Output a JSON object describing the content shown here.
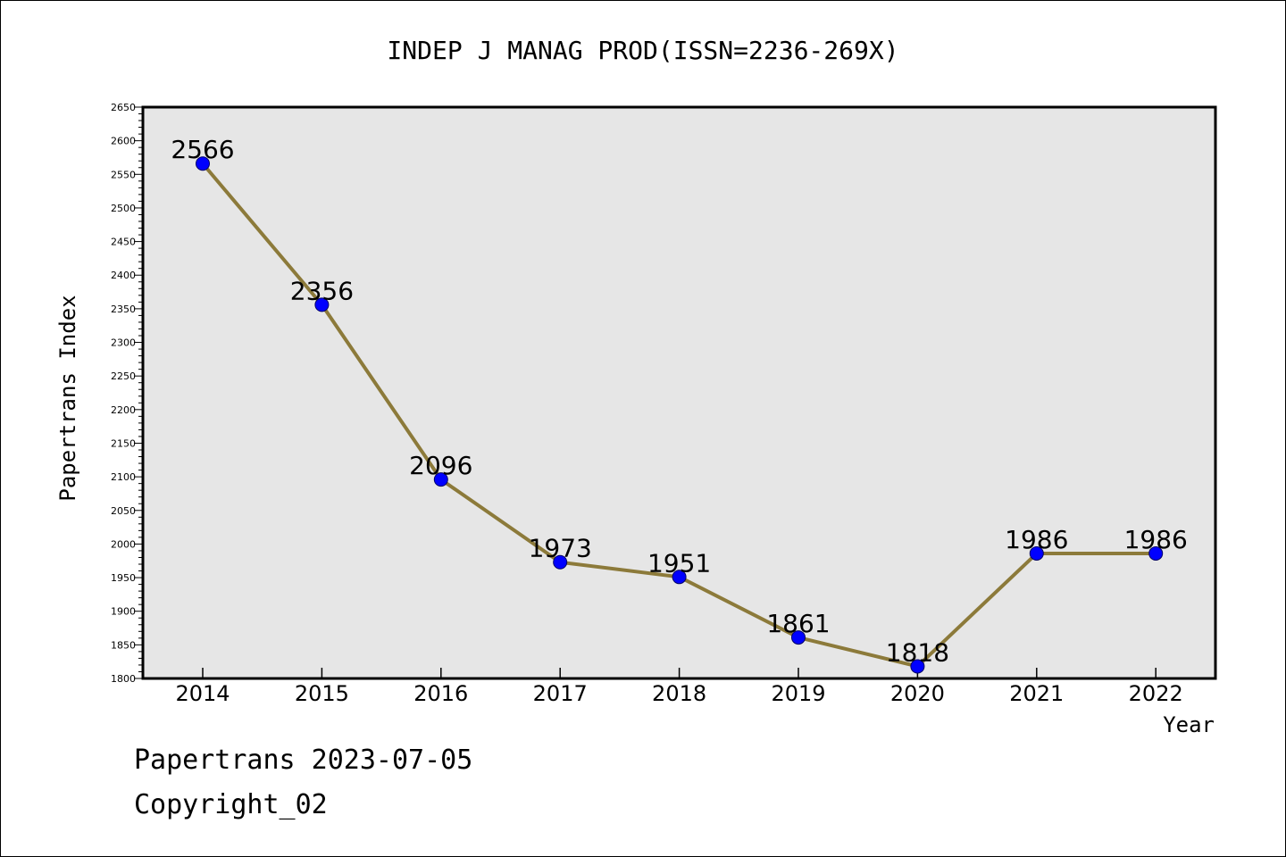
{
  "chart_data": {
    "type": "line",
    "title": "INDEP J MANAG PROD(ISSN=2236-269X)",
    "xlabel": "Year",
    "ylabel": "Papertrans Index",
    "categories": [
      "2014",
      "2015",
      "2016",
      "2017",
      "2018",
      "2019",
      "2020",
      "2021",
      "2022"
    ],
    "values": [
      2566,
      2356,
      2096,
      1973,
      1951,
      1861,
      1818,
      1986,
      1986
    ],
    "data_labels": [
      "2566",
      "2356",
      "2096",
      "1973",
      "1951",
      "1861",
      "1818",
      "1986",
      "1986"
    ],
    "ylim": [
      1800,
      2650
    ],
    "yticks": [
      1800,
      1850,
      1900,
      1950,
      2000,
      2050,
      2100,
      2150,
      2200,
      2250,
      2300,
      2350,
      2400,
      2450,
      2500,
      2550,
      2600,
      2650
    ],
    "grid": false,
    "legend": "none",
    "colors": {
      "line": "#8c7a3a",
      "marker_fill": "#0000ff",
      "marker_stroke": "#000066",
      "plot_background": "#e6e6e6",
      "axes": "#000000"
    }
  },
  "footer": {
    "line1": "Papertrans 2023-07-05",
    "line2": "Copyright_02"
  }
}
